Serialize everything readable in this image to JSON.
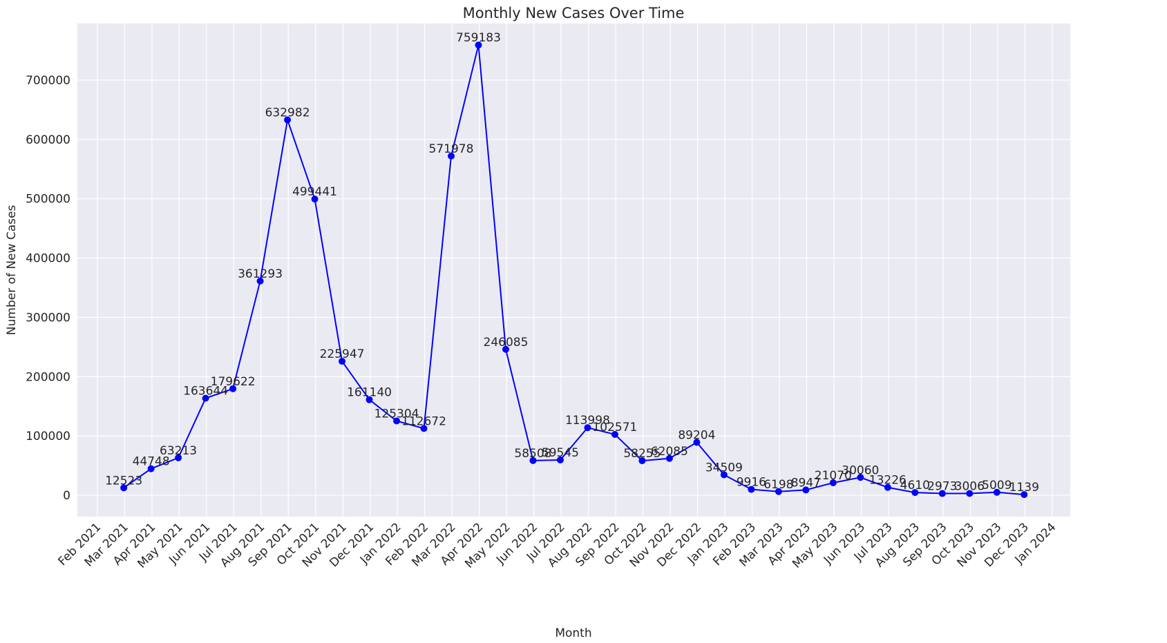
{
  "chart_data": {
    "type": "line",
    "title": "Monthly New Cases Over Time",
    "x_label": "Month",
    "y_label": "Number of New Cases",
    "x": [
      "2021-02",
      "2021-03",
      "2021-04",
      "2021-05",
      "2021-06",
      "2021-07",
      "2021-08",
      "2021-09",
      "2021-10",
      "2021-11",
      "2021-12",
      "2022-01",
      "2022-02",
      "2022-03",
      "2022-04",
      "2022-05",
      "2022-06",
      "2022-07",
      "2022-08",
      "2022-09",
      "2022-10",
      "2022-11",
      "2022-12",
      "2023-01",
      "2023-02",
      "2023-03",
      "2023-04",
      "2023-05",
      "2023-06",
      "2023-07",
      "2023-08",
      "2023-09",
      "2023-10",
      "2023-11"
    ],
    "values": [
      12523,
      44748,
      63213,
      163644,
      179622,
      361293,
      632982,
      499441,
      225947,
      161140,
      125304,
      112672,
      571978,
      759183,
      246085,
      58508,
      59545,
      113998,
      102571,
      58255,
      62085,
      89204,
      34509,
      9916,
      6198,
      8947,
      21070,
      30060,
      13226,
      4610,
      2973,
      3006,
      5009,
      1139
    ],
    "color": "#0000ff",
    "ylim": [
      -36000,
      795500
    ],
    "yticks": [
      0,
      100000,
      200000,
      300000,
      400000,
      500000,
      600000,
      700000
    ],
    "xticks": [
      {
        "value": "2021-02",
        "label": "Feb 2021"
      },
      {
        "value": "2021-03",
        "label": "Mar 2021"
      },
      {
        "value": "2021-04",
        "label": "Apr 2021"
      },
      {
        "value": "2021-05",
        "label": "May 2021"
      },
      {
        "value": "2021-06",
        "label": "Jun 2021"
      },
      {
        "value": "2021-07",
        "label": "Jul 2021"
      },
      {
        "value": "2021-08",
        "label": "Aug 2021"
      },
      {
        "value": "2021-09",
        "label": "Sep 2021"
      },
      {
        "value": "2021-10",
        "label": "Oct 2021"
      },
      {
        "value": "2021-11",
        "label": "Nov 2021"
      },
      {
        "value": "2021-12",
        "label": "Dec 2021"
      },
      {
        "value": "2022-01",
        "label": "Jan 2022"
      },
      {
        "value": "2022-02",
        "label": "Feb 2022"
      },
      {
        "value": "2022-03",
        "label": "Mar 2022"
      },
      {
        "value": "2022-04",
        "label": "Apr 2022"
      },
      {
        "value": "2022-05",
        "label": "May 2022"
      },
      {
        "value": "2022-06",
        "label": "Jun 2022"
      },
      {
        "value": "2022-07",
        "label": "Jul 2022"
      },
      {
        "value": "2022-08",
        "label": "Aug 2022"
      },
      {
        "value": "2022-09",
        "label": "Sep 2022"
      },
      {
        "value": "2022-10",
        "label": "Oct 2022"
      },
      {
        "value": "2022-11",
        "label": "Nov 2022"
      },
      {
        "value": "2022-12",
        "label": "Dec 2022"
      },
      {
        "value": "2023-01",
        "label": "Jan 2023"
      },
      {
        "value": "2023-02",
        "label": "Feb 2023"
      },
      {
        "value": "2023-03",
        "label": "Mar 2023"
      },
      {
        "value": "2023-04",
        "label": "Apr 2023"
      },
      {
        "value": "2023-05",
        "label": "May 2023"
      },
      {
        "value": "2023-06",
        "label": "Jun 2023"
      },
      {
        "value": "2023-07",
        "label": "Jul 2023"
      },
      {
        "value": "2023-08",
        "label": "Aug 2023"
      },
      {
        "value": "2023-09",
        "label": "Sep 2023"
      },
      {
        "value": "2023-10",
        "label": "Oct 2023"
      },
      {
        "value": "2023-11",
        "label": "Nov 2023"
      },
      {
        "value": "2023-12",
        "label": "Dec 2023"
      },
      {
        "value": "2024-01",
        "label": "Jan 2024"
      }
    ],
    "grid": true
  }
}
